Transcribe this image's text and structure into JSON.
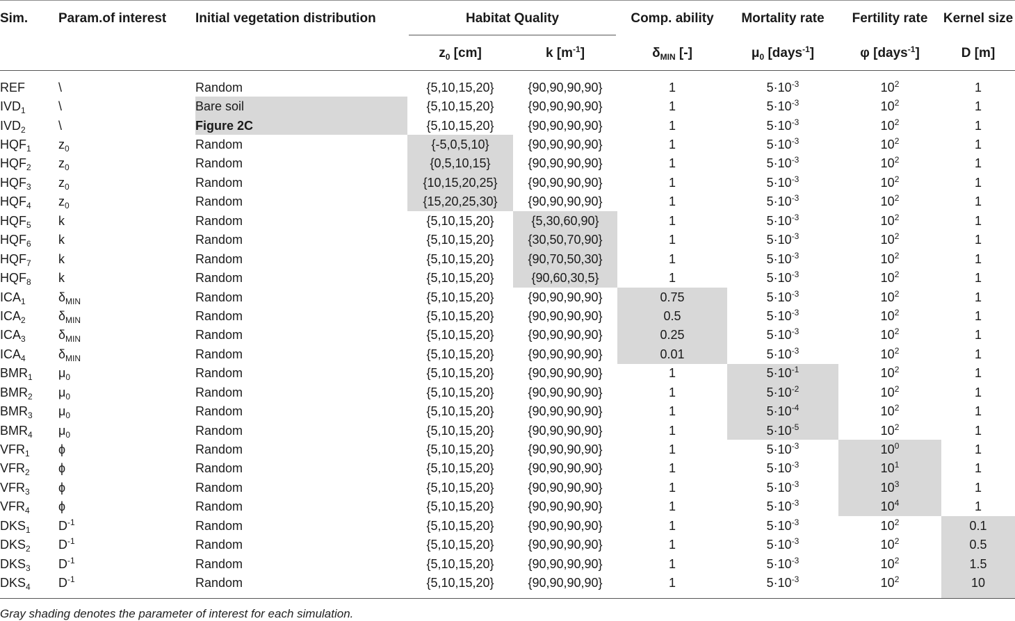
{
  "headers": {
    "sim": "Sim.",
    "param": "Param.of interest",
    "ivd": "Initial vegetation distribution",
    "habitat": "Habitat Quality",
    "comp": "Comp. ability",
    "mort": "Mortality rate",
    "fert": "Fertility rate",
    "kernel": "Kernel size",
    "z0": {
      "base": "z",
      "sub": "0",
      "rest": " [cm]"
    },
    "k": {
      "base": "k [m",
      "sup": "-1",
      "rest": "]"
    },
    "delta": {
      "base": "δ",
      "sub": "MIN",
      "rest": " [-]"
    },
    "mu": {
      "base": "μ",
      "sub": "0",
      "rest": " [days",
      "sup": "-1",
      "rest2": "]"
    },
    "phi": {
      "base": "φ [days",
      "sup": "-1",
      "rest": "]"
    },
    "D": {
      "base": "D [m]"
    }
  },
  "rows": [
    {
      "sim": {
        "base": "REF"
      },
      "param": {
        "base": "\\"
      },
      "ivd": "Random",
      "z0": "{5,10,15,20}",
      "k": "{90,90,90,90}",
      "delta": "1",
      "mu": {
        "base": "5·10",
        "sup": "-3"
      },
      "phi": {
        "base": "10",
        "sup": "2"
      },
      "D": "1",
      "shade": ""
    },
    {
      "sim": {
        "base": "IVD",
        "sub": "1"
      },
      "param": {
        "base": "\\"
      },
      "ivd": "Bare soil",
      "z0": "{5,10,15,20}",
      "k": "{90,90,90,90}",
      "delta": "1",
      "mu": {
        "base": "5·10",
        "sup": "-3"
      },
      "phi": {
        "base": "10",
        "sup": "2"
      },
      "D": "1",
      "shade": "ivd"
    },
    {
      "sim": {
        "base": "IVD",
        "sub": "2"
      },
      "param": {
        "base": "\\"
      },
      "ivd": "Figure 2C",
      "ivd_bold": true,
      "z0": "{5,10,15,20}",
      "k": "{90,90,90,90}",
      "delta": "1",
      "mu": {
        "base": "5·10",
        "sup": "-3"
      },
      "phi": {
        "base": "10",
        "sup": "2"
      },
      "D": "1",
      "shade": "ivd"
    },
    {
      "sim": {
        "base": "HQF",
        "sub": "1"
      },
      "param": {
        "base": "z",
        "sub": "0"
      },
      "ivd": "Random",
      "z0": "{-5,0,5,10}",
      "k": "{90,90,90,90}",
      "delta": "1",
      "mu": {
        "base": "5·10",
        "sup": "-3"
      },
      "phi": {
        "base": "10",
        "sup": "2"
      },
      "D": "1",
      "shade": "z0"
    },
    {
      "sim": {
        "base": "HQF",
        "sub": "2"
      },
      "param": {
        "base": "z",
        "sub": "0"
      },
      "ivd": "Random",
      "z0": "{0,5,10,15}",
      "k": "{90,90,90,90}",
      "delta": "1",
      "mu": {
        "base": "5·10",
        "sup": "-3"
      },
      "phi": {
        "base": "10",
        "sup": "2"
      },
      "D": "1",
      "shade": "z0"
    },
    {
      "sim": {
        "base": "HQF",
        "sub": "3"
      },
      "param": {
        "base": "z",
        "sub": "0"
      },
      "ivd": "Random",
      "z0": "{10,15,20,25}",
      "k": "{90,90,90,90}",
      "delta": "1",
      "mu": {
        "base": "5·10",
        "sup": "-3"
      },
      "phi": {
        "base": "10",
        "sup": "2"
      },
      "D": "1",
      "shade": "z0"
    },
    {
      "sim": {
        "base": "HQF",
        "sub": "4"
      },
      "param": {
        "base": "z",
        "sub": "0"
      },
      "ivd": "Random",
      "z0": "{15,20,25,30}",
      "k": "{90,90,90,90}",
      "delta": "1",
      "mu": {
        "base": "5·10",
        "sup": "-3"
      },
      "phi": {
        "base": "10",
        "sup": "2"
      },
      "D": "1",
      "shade": "z0"
    },
    {
      "sim": {
        "base": "HQF",
        "sub": "5"
      },
      "param": {
        "base": "k"
      },
      "ivd": "Random",
      "z0": "{5,10,15,20}",
      "k": "{5,30,60,90}",
      "delta": "1",
      "mu": {
        "base": "5·10",
        "sup": "-3"
      },
      "phi": {
        "base": "10",
        "sup": "2"
      },
      "D": "1",
      "shade": "k"
    },
    {
      "sim": {
        "base": "HQF",
        "sub": "6"
      },
      "param": {
        "base": "k"
      },
      "ivd": "Random",
      "z0": "{5,10,15,20}",
      "k": "{30,50,70,90}",
      "delta": "1",
      "mu": {
        "base": "5·10",
        "sup": "-3"
      },
      "phi": {
        "base": "10",
        "sup": "2"
      },
      "D": "1",
      "shade": "k"
    },
    {
      "sim": {
        "base": "HQF",
        "sub": "7"
      },
      "param": {
        "base": "k"
      },
      "ivd": "Random",
      "z0": "{5,10,15,20}",
      "k": "{90,70,50,30}",
      "delta": "1",
      "mu": {
        "base": "5·10",
        "sup": "-3"
      },
      "phi": {
        "base": "10",
        "sup": "2"
      },
      "D": "1",
      "shade": "k"
    },
    {
      "sim": {
        "base": "HQF",
        "sub": "8"
      },
      "param": {
        "base": "k"
      },
      "ivd": "Random",
      "z0": "{5,10,15,20}",
      "k": "{90,60,30,5}",
      "delta": "1",
      "mu": {
        "base": "5·10",
        "sup": "-3"
      },
      "phi": {
        "base": "10",
        "sup": "2"
      },
      "D": "1",
      "shade": "k"
    },
    {
      "sim": {
        "base": "ICA",
        "sub": "1"
      },
      "param": {
        "base": "δ",
        "sub": "MIN"
      },
      "ivd": "Random",
      "z0": "{5,10,15,20}",
      "k": "{90,90,90,90}",
      "delta": "0.75",
      "mu": {
        "base": "5·10",
        "sup": "-3"
      },
      "phi": {
        "base": "10",
        "sup": "2"
      },
      "D": "1",
      "shade": "delta"
    },
    {
      "sim": {
        "base": "ICA",
        "sub": "2"
      },
      "param": {
        "base": "δ",
        "sub": "MIN"
      },
      "ivd": "Random",
      "z0": "{5,10,15,20}",
      "k": "{90,90,90,90}",
      "delta": "0.5",
      "mu": {
        "base": "5·10",
        "sup": "-3"
      },
      "phi": {
        "base": "10",
        "sup": "2"
      },
      "D": "1",
      "shade": "delta"
    },
    {
      "sim": {
        "base": "ICA",
        "sub": "3"
      },
      "param": {
        "base": "δ",
        "sub": "MIN"
      },
      "ivd": "Random",
      "z0": "{5,10,15,20}",
      "k": "{90,90,90,90}",
      "delta": "0.25",
      "mu": {
        "base": "5·10",
        "sup": "-3"
      },
      "phi": {
        "base": "10",
        "sup": "2"
      },
      "D": "1",
      "shade": "delta"
    },
    {
      "sim": {
        "base": "ICA",
        "sub": "4"
      },
      "param": {
        "base": "δ",
        "sub": "MIN"
      },
      "ivd": "Random",
      "z0": "{5,10,15,20}",
      "k": "{90,90,90,90}",
      "delta": "0.01",
      "mu": {
        "base": "5·10",
        "sup": "-3"
      },
      "phi": {
        "base": "10",
        "sup": "2"
      },
      "D": "1",
      "shade": "delta"
    },
    {
      "sim": {
        "base": "BMR",
        "sub": "1"
      },
      "param": {
        "base": "μ",
        "sub": "0"
      },
      "ivd": "Random",
      "z0": "{5,10,15,20}",
      "k": "{90,90,90,90}",
      "delta": "1",
      "mu": {
        "base": "5·10",
        "sup": "-1"
      },
      "phi": {
        "base": "10",
        "sup": "2"
      },
      "D": "1",
      "shade": "mu"
    },
    {
      "sim": {
        "base": "BMR",
        "sub": "2"
      },
      "param": {
        "base": "μ",
        "sub": "0"
      },
      "ivd": "Random",
      "z0": "{5,10,15,20}",
      "k": "{90,90,90,90}",
      "delta": "1",
      "mu": {
        "base": "5·10",
        "sup": "-2"
      },
      "phi": {
        "base": "10",
        "sup": "2"
      },
      "D": "1",
      "shade": "mu"
    },
    {
      "sim": {
        "base": "BMR",
        "sub": "3"
      },
      "param": {
        "base": "μ",
        "sub": "0"
      },
      "ivd": "Random",
      "z0": "{5,10,15,20}",
      "k": "{90,90,90,90}",
      "delta": "1",
      "mu": {
        "base": "5·10",
        "sup": "-4"
      },
      "phi": {
        "base": "10",
        "sup": "2"
      },
      "D": "1",
      "shade": "mu"
    },
    {
      "sim": {
        "base": "BMR",
        "sub": "4"
      },
      "param": {
        "base": "μ",
        "sub": "0"
      },
      "ivd": "Random",
      "z0": "{5,10,15,20}",
      "k": "{90,90,90,90}",
      "delta": "1",
      "mu": {
        "base": "5·10",
        "sup": "-5"
      },
      "phi": {
        "base": "10",
        "sup": "2"
      },
      "D": "1",
      "shade": "mu"
    },
    {
      "sim": {
        "base": "VFR",
        "sub": "1"
      },
      "param": {
        "base": "ϕ"
      },
      "ivd": "Random",
      "z0": "{5,10,15,20}",
      "k": "{90,90,90,90}",
      "delta": "1",
      "mu": {
        "base": "5·10",
        "sup": "-3"
      },
      "phi": {
        "base": "10",
        "sup": "0"
      },
      "D": "1",
      "shade": "phi"
    },
    {
      "sim": {
        "base": "VFR",
        "sub": "2"
      },
      "param": {
        "base": "ϕ"
      },
      "ivd": "Random",
      "z0": "{5,10,15,20}",
      "k": "{90,90,90,90}",
      "delta": "1",
      "mu": {
        "base": "5·10",
        "sup": "-3"
      },
      "phi": {
        "base": "10",
        "sup": "1"
      },
      "D": "1",
      "shade": "phi"
    },
    {
      "sim": {
        "base": "VFR",
        "sub": "3"
      },
      "param": {
        "base": "ϕ"
      },
      "ivd": "Random",
      "z0": "{5,10,15,20}",
      "k": "{90,90,90,90}",
      "delta": "1",
      "mu": {
        "base": "5·10",
        "sup": "-3"
      },
      "phi": {
        "base": "10",
        "sup": "3"
      },
      "D": "1",
      "shade": "phi"
    },
    {
      "sim": {
        "base": "VFR",
        "sub": "4"
      },
      "param": {
        "base": "ϕ"
      },
      "ivd": "Random",
      "z0": "{5,10,15,20}",
      "k": "{90,90,90,90}",
      "delta": "1",
      "mu": {
        "base": "5·10",
        "sup": "-3"
      },
      "phi": {
        "base": "10",
        "sup": "4"
      },
      "D": "1",
      "shade": "phi"
    },
    {
      "sim": {
        "base": "DKS",
        "sub": "1"
      },
      "param": {
        "base": "D",
        "sup": "-1"
      },
      "ivd": "Random",
      "z0": "{5,10,15,20}",
      "k": "{90,90,90,90}",
      "delta": "1",
      "mu": {
        "base": "5·10",
        "sup": "-3"
      },
      "phi": {
        "base": "10",
        "sup": "2"
      },
      "D": "0.1",
      "shade": "D"
    },
    {
      "sim": {
        "base": "DKS",
        "sub": "2"
      },
      "param": {
        "base": "D",
        "sup": "-1"
      },
      "ivd": "Random",
      "z0": "{5,10,15,20}",
      "k": "{90,90,90,90}",
      "delta": "1",
      "mu": {
        "base": "5·10",
        "sup": "-3"
      },
      "phi": {
        "base": "10",
        "sup": "2"
      },
      "D": "0.5",
      "shade": "D"
    },
    {
      "sim": {
        "base": "DKS",
        "sub": "3"
      },
      "param": {
        "base": "D",
        "sup": "-1"
      },
      "ivd": "Random",
      "z0": "{5,10,15,20}",
      "k": "{90,90,90,90}",
      "delta": "1",
      "mu": {
        "base": "5·10",
        "sup": "-3"
      },
      "phi": {
        "base": "10",
        "sup": "2"
      },
      "D": "1.5",
      "shade": "D"
    },
    {
      "sim": {
        "base": "DKS",
        "sub": "4"
      },
      "param": {
        "base": "D",
        "sup": "-1"
      },
      "ivd": "Random",
      "z0": "{5,10,15,20}",
      "k": "{90,90,90,90}",
      "delta": "1",
      "mu": {
        "base": "5·10",
        "sup": "-3"
      },
      "phi": {
        "base": "10",
        "sup": "2"
      },
      "D": "10",
      "shade": "D"
    }
  ],
  "footnote": "Gray shading denotes the parameter of interest for each simulation.",
  "colors": {
    "shade": "#d8d8d8",
    "rule": "#555555"
  }
}
